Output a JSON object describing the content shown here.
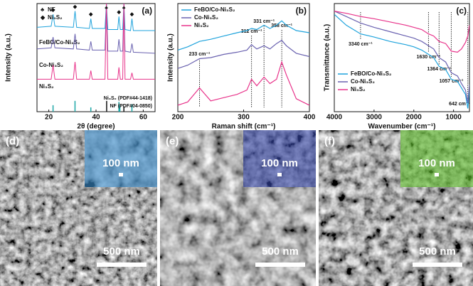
{
  "chart_data": [
    {
      "type": "line",
      "panel_label": "(a)",
      "x_label": "2θ (degree)",
      "y_label": "Intensity (a.u.)",
      "xlim": [
        15,
        65
      ],
      "xticks": [
        20,
        40,
        60
      ],
      "ylim": [
        0,
        10
      ],
      "x": [
        15,
        21,
        21.8,
        22.6,
        30.4,
        31.1,
        31.8,
        37.2,
        37.8,
        38.4,
        43.8,
        44.4,
        45,
        49.2,
        49.7,
        50.3,
        51.3,
        51.8,
        52.3,
        54.6,
        55.2,
        55.8,
        65
      ],
      "series": [
        {
          "name": "FeBO/Co-Ni₃S₂",
          "color": "#1fa3dc",
          "values": [
            7.8,
            7.9,
            9.0,
            7.9,
            7.8,
            9.3,
            7.8,
            7.7,
            8.6,
            7.7,
            7.7,
            10,
            7.6,
            7.6,
            8.8,
            7.6,
            7.6,
            10,
            7.6,
            7.5,
            8.6,
            7.5,
            7.5
          ]
        },
        {
          "name": "Co-Ni₃S₂",
          "color": "#6a62b0",
          "values": [
            5.8,
            5.9,
            6.9,
            5.9,
            5.8,
            7.2,
            5.8,
            5.7,
            6.5,
            5.7,
            5.7,
            10,
            5.6,
            5.6,
            6.7,
            5.6,
            5.6,
            10,
            5.6,
            5.5,
            6.3,
            5.5,
            5.4
          ]
        },
        {
          "name": "Ni₃S₂",
          "color": "#e8338a",
          "values": [
            3.0,
            3.0,
            4.3,
            3.0,
            3.0,
            4.6,
            3.0,
            3.0,
            3.8,
            3.0,
            3.0,
            10,
            3.0,
            3.0,
            4.1,
            3.0,
            3.0,
            10,
            3.0,
            3.0,
            3.6,
            3.0,
            3.0
          ]
        }
      ],
      "markers": [
        {
          "name": "NF",
          "symbol": "♣",
          "color": "#1c1c4a"
        },
        {
          "name": "Ni₃S₂",
          "symbol": "◆",
          "color": "#2aa59a"
        }
      ],
      "peak_markers": [
        {
          "x": 21.8,
          "y": 9.4,
          "marker": 1
        },
        {
          "x": 31.1,
          "y": 9.7,
          "marker": 1
        },
        {
          "x": 37.8,
          "y": 9.0,
          "marker": 1
        },
        {
          "x": 44.4,
          "y": 9.6,
          "marker": 0
        },
        {
          "x": 49.7,
          "y": 9.2,
          "marker": 1
        },
        {
          "x": 51.8,
          "y": 9.6,
          "marker": 0
        },
        {
          "x": 55.2,
          "y": 9.0,
          "marker": 1
        }
      ],
      "references": [
        {
          "label": "Ni₃S₂ (PDF#44-1418)",
          "color": "#1aa5a5",
          "positions": [
            21.8,
            31.1,
            37.8,
            49.7,
            50.1,
            55.2
          ],
          "heights": [
            0.6,
            1.0,
            0.4,
            0.9,
            0.6,
            0.7
          ]
        },
        {
          "label": "NF (PDF#04-0850)",
          "color": "#111111",
          "positions": [
            44.5,
            51.8
          ],
          "heights": [
            1.0,
            0.5
          ]
        }
      ]
    },
    {
      "type": "line",
      "panel_label": "(b)",
      "x_label": "Raman shift (cm⁻¹)",
      "y_label": "Intensity (a.u.)",
      "xlim": [
        200,
        400
      ],
      "xticks": [
        200,
        300,
        400
      ],
      "ylim": [
        0,
        10
      ],
      "x": [
        200,
        215,
        233,
        250,
        270,
        290,
        305,
        312,
        320,
        331,
        340,
        350,
        358,
        365,
        380,
        400
      ],
      "series": [
        {
          "name": "FeBO/Co-Ni₃S₂",
          "color": "#1fa3dc",
          "values": [
            5.7,
            6.0,
            6.5,
            6.7,
            7.0,
            7.3,
            7.5,
            7.7,
            7.6,
            8.0,
            7.7,
            8.0,
            8.4,
            8.0,
            7.5,
            7.3
          ]
        },
        {
          "name": "Co-Ni₃S₂",
          "color": "#6a62b0",
          "values": [
            4.0,
            4.3,
            4.9,
            5.0,
            5.3,
            5.5,
            5.7,
            6.2,
            5.8,
            6.1,
            5.8,
            6.3,
            6.6,
            6.1,
            5.4,
            5.1
          ]
        },
        {
          "name": "Ni₃S₂",
          "color": "#e8338a",
          "values": [
            0.6,
            0.9,
            2.2,
            1.0,
            1.3,
            1.6,
            2.0,
            3.0,
            2.4,
            3.2,
            2.6,
            3.0,
            4.6,
            3.4,
            1.2,
            0.6
          ]
        }
      ],
      "annotations": [
        {
          "text": "233 cm⁻¹",
          "x": 233
        },
        {
          "text": "312 cm⁻¹",
          "x": 312
        },
        {
          "text": "331 cm⁻¹",
          "x": 331
        },
        {
          "text": "358 cm⁻¹",
          "x": 358
        }
      ]
    },
    {
      "type": "line",
      "panel_label": "(c)",
      "x_label": "Wavenumber (cm⁻¹)",
      "y_label": "Transmittance (a.u.)",
      "xlim": [
        4000,
        600
      ],
      "xticks": [
        4000,
        3000,
        2000,
        1000
      ],
      "ylim": [
        0,
        10
      ],
      "x": [
        4000,
        3700,
        3340,
        3000,
        2600,
        2200,
        2000,
        1800,
        1630,
        1500,
        1364,
        1200,
        1057,
        900,
        800,
        700,
        642,
        600
      ],
      "series": [
        {
          "name": "FeBO/Co-Ni₃S₂",
          "color": "#1fa3dc",
          "values": [
            9.0,
            8.0,
            7.2,
            6.9,
            6.5,
            6.2,
            6.0,
            5.7,
            5.3,
            5.0,
            4.2,
            3.9,
            3.0,
            2.8,
            2.2,
            1.6,
            0.3,
            2.0
          ]
        },
        {
          "name": "Co-Ni₃S₂",
          "color": "#6a62b0",
          "values": [
            9.3,
            8.8,
            8.2,
            7.8,
            7.4,
            7.0,
            6.8,
            6.5,
            6.1,
            5.8,
            5.0,
            4.6,
            3.6,
            3.3,
            2.6,
            2.0,
            0.8,
            2.5
          ]
        },
        {
          "name": "Ni₃S₂",
          "color": "#e8338a",
          "values": [
            9.3,
            9.1,
            8.8,
            8.6,
            8.3,
            8.0,
            7.8,
            7.6,
            7.2,
            7.0,
            6.5,
            6.3,
            5.6,
            5.5,
            5.8,
            6.4,
            7.0,
            8.0
          ]
        }
      ],
      "annotations": [
        {
          "text": "3340 cm⁻¹",
          "x": 3340
        },
        {
          "text": "1630 cm⁻¹",
          "x": 1630
        },
        {
          "text": "1364 cm⁻¹",
          "x": 1364
        },
        {
          "text": "1057 cm⁻¹",
          "x": 1057
        },
        {
          "text": "642 cm⁻¹",
          "x": 642
        }
      ]
    }
  ],
  "images": [
    {
      "label": "(d)",
      "inset_scale": "100 nm",
      "scale": "500 nm",
      "inset_color": "#3a8fd0"
    },
    {
      "label": "(e)",
      "inset_scale": "100 nm",
      "scale": "500 nm",
      "inset_color": "#3546a8"
    },
    {
      "label": "(f)",
      "inset_scale": "100 nm",
      "scale": "500 nm",
      "inset_color": "#5fbf2a"
    }
  ]
}
